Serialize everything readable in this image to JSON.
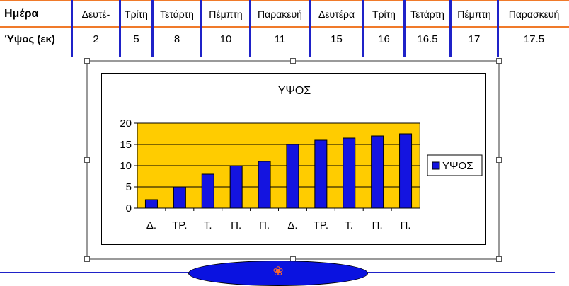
{
  "table": {
    "row1_label": "Ημέρα",
    "row2_label": "Ύψος (εκ)",
    "days": [
      "Δευτέ-",
      "Τρίτη",
      "Τετάρτη",
      "Πέμπτη",
      "Παρακευή",
      "Δευτέρα",
      "Τρίτη",
      "Τετάρτη",
      "Πέμπτη",
      "Παρασκευή"
    ],
    "heights": [
      "2",
      "5",
      "8",
      "10",
      "11",
      "15",
      "16",
      "16.5",
      "17",
      "17.5"
    ]
  },
  "chart_data": {
    "type": "bar",
    "title": "ΥΨΟΣ",
    "categories": [
      "Δ.",
      "ΤΡ.",
      "Τ.",
      "Π.",
      "Π.",
      "Δ.",
      "ΤΡ.",
      "Τ.",
      "Π.",
      "Π."
    ],
    "series": [
      {
        "name": "ΥΨΟΣ",
        "values": [
          2,
          5,
          8,
          10,
          11,
          15,
          16,
          16.5,
          17,
          17.5
        ]
      }
    ],
    "ylim": [
      0,
      20
    ],
    "yticks": [
      0,
      5,
      10,
      15,
      20
    ],
    "grid": true,
    "legend": "right",
    "colors": {
      "bar": "#1414e0",
      "plot_bg": "#ffcc00"
    }
  },
  "nav": {
    "icon": "swirl-icon"
  },
  "colors": {
    "table_lines": "#f07a2a",
    "column_lines": "#1f22c8"
  }
}
